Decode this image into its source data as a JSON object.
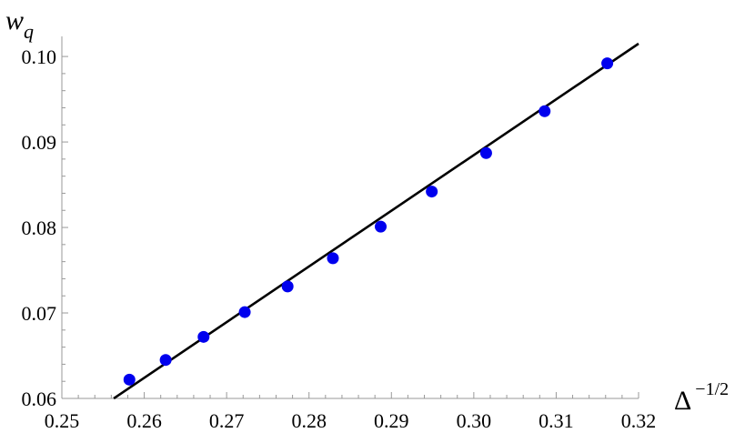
{
  "chart_data": {
    "type": "scatter",
    "title": "",
    "xlabel": "Δ",
    "xlabel_sup": "−1/2",
    "ylabel": "w",
    "ylabel_sub": "q",
    "xlim": [
      0.25,
      0.32
    ],
    "ylim": [
      0.06,
      0.1015
    ],
    "x_ticks": [
      0.25,
      0.26,
      0.27,
      0.28,
      0.29,
      0.3,
      0.31,
      0.32
    ],
    "x_tick_labels": [
      "0.25",
      "0.26",
      "0.27",
      "0.28",
      "0.29",
      "0.30",
      "0.31",
      "0.32"
    ],
    "y_ticks": [
      0.06,
      0.07,
      0.08,
      0.09,
      0.1
    ],
    "y_tick_labels": [
      "0.06",
      "0.07",
      "0.08",
      "0.09",
      "0.10"
    ],
    "grid": false,
    "legend": "none",
    "series": [
      {
        "marker_color": "#0000ee",
        "points": [
          {
            "x": 0.2582,
            "y": 0.0622
          },
          {
            "x": 0.2626,
            "y": 0.0645
          },
          {
            "x": 0.2672,
            "y": 0.0672
          },
          {
            "x": 0.2722,
            "y": 0.0701
          },
          {
            "x": 0.2774,
            "y": 0.0731
          },
          {
            "x": 0.2829,
            "y": 0.0764
          },
          {
            "x": 0.2887,
            "y": 0.0801
          },
          {
            "x": 0.2949,
            "y": 0.0842
          },
          {
            "x": 0.3015,
            "y": 0.0887
          },
          {
            "x": 0.3086,
            "y": 0.0936
          },
          {
            "x": 0.3162,
            "y": 0.0992
          }
        ]
      }
    ],
    "fit_line": {
      "color": "#000000",
      "points": [
        {
          "x": 0.2563,
          "y": 0.06
        },
        {
          "x": 0.32,
          "y": 0.1015
        }
      ]
    }
  }
}
